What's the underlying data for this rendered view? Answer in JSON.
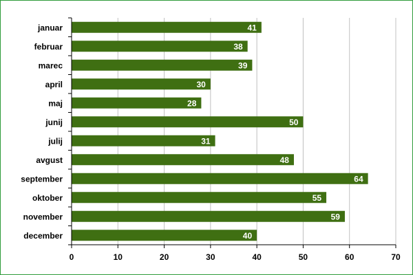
{
  "chart_data": {
    "type": "bar",
    "orientation": "horizontal",
    "categories": [
      "januar",
      "februar",
      "marec",
      "april",
      "maj",
      "junij",
      "julij",
      "avgust",
      "september",
      "oktober",
      "november",
      "december"
    ],
    "values": [
      41,
      38,
      39,
      30,
      28,
      50,
      31,
      48,
      64,
      55,
      59,
      40
    ],
    "xlim": [
      0,
      70
    ],
    "xticks": [
      0,
      10,
      20,
      30,
      40,
      50,
      60,
      70
    ],
    "grid": "vertical",
    "data_labels": "inside-end",
    "colors": {
      "bar": "#3f6f12",
      "grid": "#c0c0c0",
      "frame": "#2e9b3a",
      "value_text": "#ffffff"
    }
  }
}
